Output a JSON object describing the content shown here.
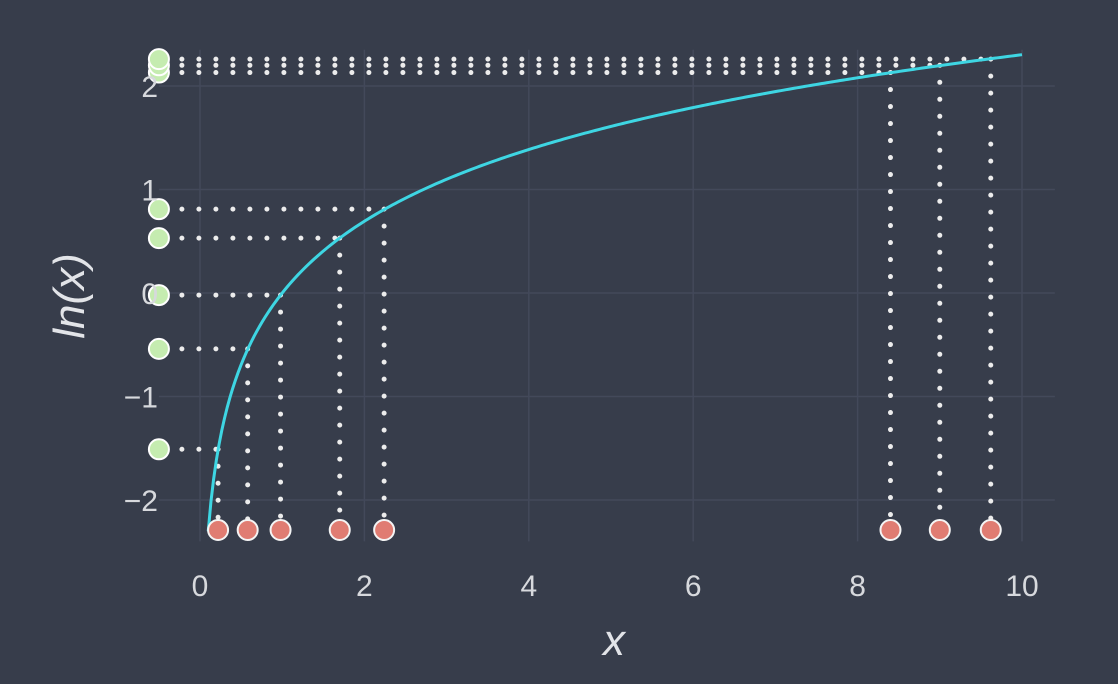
{
  "chart_data": {
    "type": "line",
    "xlabel": "x",
    "ylabel": "ln(x)",
    "xlim": [
      -0.5,
      10.4
    ],
    "ylim": [
      -2.4,
      2.35
    ],
    "grid": true,
    "x_ticks": [
      0,
      2,
      4,
      6,
      8,
      10
    ],
    "y_ticks": [
      -2,
      -1,
      0,
      1,
      2
    ],
    "x_tick_labels": [
      "0",
      "2",
      "4",
      "6",
      "8",
      "10"
    ],
    "y_tick_labels": [
      "−2",
      "−1",
      "0",
      "1",
      "2"
    ],
    "curve": {
      "function": "ln(x)",
      "x_range": [
        0.1,
        10
      ],
      "color": "#3ed6e3"
    },
    "sample_points": [
      {
        "x": 0.22,
        "y": -1.51
      },
      {
        "x": 0.58,
        "y": -0.54
      },
      {
        "x": 0.98,
        "y": -0.02
      },
      {
        "x": 1.7,
        "y": 0.53
      },
      {
        "x": 2.24,
        "y": 0.81
      },
      {
        "x": 8.4,
        "y": 2.13
      },
      {
        "x": 9.0,
        "y": 2.2
      },
      {
        "x": 9.62,
        "y": 2.26
      }
    ],
    "x_marker_color": "#e07c72",
    "y_marker_color": "#c5ecb0",
    "guide_color": "#ececec"
  }
}
